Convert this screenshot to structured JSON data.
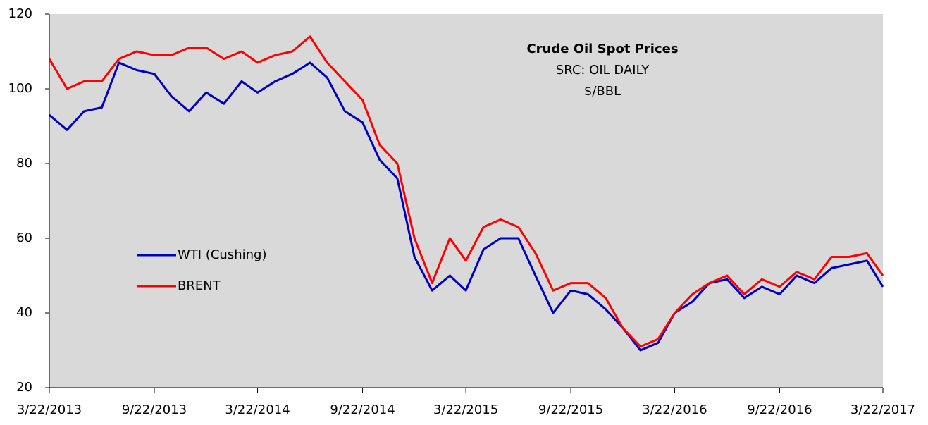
{
  "chart_data": {
    "type": "line",
    "title": "Crude Oil Spot Prices",
    "annotations": [
      "SRC: OIL DAILY",
      "$/BBL"
    ],
    "x": [
      "2013-03-22",
      "2013-04-22",
      "2013-05-22",
      "2013-06-22",
      "2013-07-22",
      "2013-08-22",
      "2013-09-22",
      "2013-10-22",
      "2013-11-22",
      "2013-12-22",
      "2014-01-22",
      "2014-02-22",
      "2014-03-22",
      "2014-04-22",
      "2014-05-22",
      "2014-06-22",
      "2014-07-22",
      "2014-08-22",
      "2014-09-22",
      "2014-10-22",
      "2014-11-22",
      "2014-12-22",
      "2015-01-22",
      "2015-02-22",
      "2015-03-22",
      "2015-04-22",
      "2015-05-22",
      "2015-06-22",
      "2015-07-22",
      "2015-08-22",
      "2015-09-22",
      "2015-10-22",
      "2015-11-22",
      "2015-12-22",
      "2016-01-22",
      "2016-02-22",
      "2016-03-22",
      "2016-04-22",
      "2016-05-22",
      "2016-06-22",
      "2016-07-22",
      "2016-08-22",
      "2016-09-22",
      "2016-10-22",
      "2016-11-22",
      "2016-12-22",
      "2017-01-22",
      "2017-02-22",
      "2017-03-22"
    ],
    "series": [
      {
        "name": "WTI (Cushing)",
        "color": "#0000c0",
        "values": [
          93,
          89,
          94,
          95,
          107,
          105,
          104,
          98,
          94,
          99,
          96,
          102,
          99,
          102,
          104,
          107,
          103,
          94,
          91,
          81,
          76,
          55,
          46,
          50,
          46,
          57,
          60,
          60,
          50,
          40,
          46,
          45,
          41,
          36,
          30,
          32,
          40,
          43,
          48,
          49,
          44,
          47,
          45,
          50,
          48,
          52,
          53,
          54,
          47
        ]
      },
      {
        "name": "BRENT",
        "color": "#ff0000",
        "values": [
          108,
          100,
          102,
          102,
          108,
          110,
          109,
          109,
          111,
          111,
          108,
          110,
          107,
          109,
          110,
          114,
          107,
          102,
          97,
          85,
          80,
          60,
          48,
          60,
          54,
          63,
          65,
          63,
          56,
          46,
          48,
          48,
          44,
          36,
          31,
          33,
          40,
          45,
          48,
          50,
          45,
          49,
          47,
          51,
          49,
          55,
          55,
          56,
          50
        ]
      }
    ],
    "xlim": [
      "2013-03-22",
      "2017-03-22"
    ],
    "xticks": [
      {
        "value": "2013-03-22",
        "label": "3/22/2013"
      },
      {
        "value": "2013-09-22",
        "label": "9/22/2013"
      },
      {
        "value": "2014-03-22",
        "label": "3/22/2014"
      },
      {
        "value": "2014-09-22",
        "label": "9/22/2014"
      },
      {
        "value": "2015-03-22",
        "label": "3/22/2015"
      },
      {
        "value": "2015-09-22",
        "label": "9/22/2015"
      },
      {
        "value": "2016-03-22",
        "label": "3/22/2016"
      },
      {
        "value": "2016-09-22",
        "label": "9/22/2016"
      },
      {
        "value": "2017-03-22",
        "label": "3/22/2017"
      }
    ],
    "ylim": [
      20,
      120
    ],
    "yticks": [
      20,
      40,
      60,
      80,
      100,
      120
    ],
    "grid": false,
    "legend": "center left"
  }
}
